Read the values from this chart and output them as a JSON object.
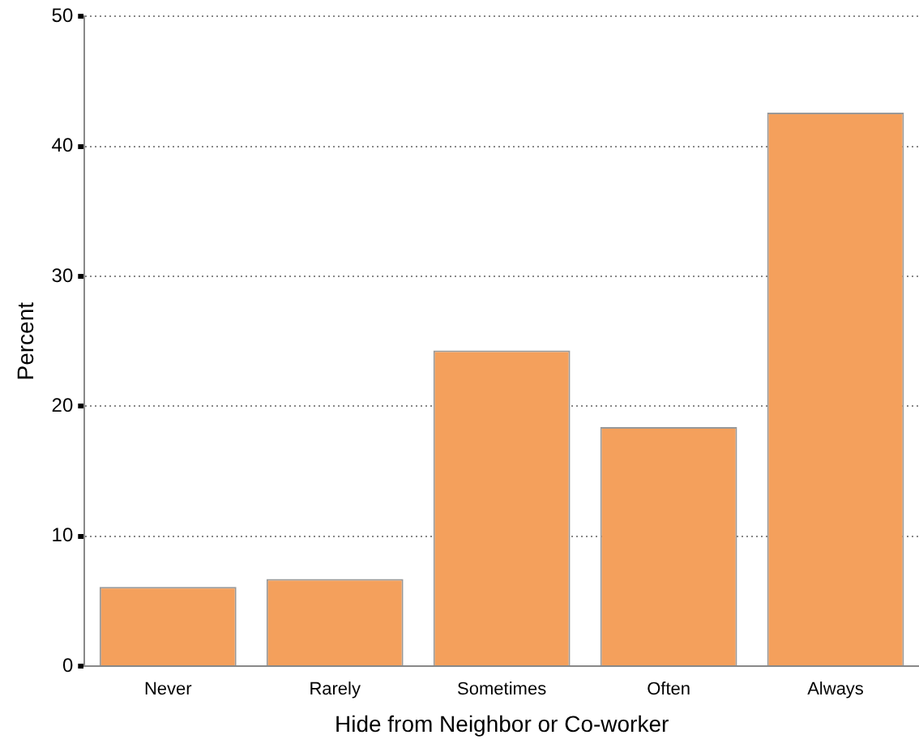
{
  "chart_data": {
    "type": "bar",
    "xlabel": "Hide from Neighbor or Co-worker",
    "ylabel": "Percent",
    "categories": [
      "Never",
      "Rarely",
      "Sometimes",
      "Often",
      "Always"
    ],
    "values": [
      6.1,
      6.7,
      24.3,
      18.4,
      42.6
    ],
    "color": "#f4a05c",
    "ylim": [
      0,
      50
    ],
    "yticks": [
      0,
      10,
      20,
      30,
      40,
      50
    ],
    "grid": "y",
    "legend": false
  }
}
